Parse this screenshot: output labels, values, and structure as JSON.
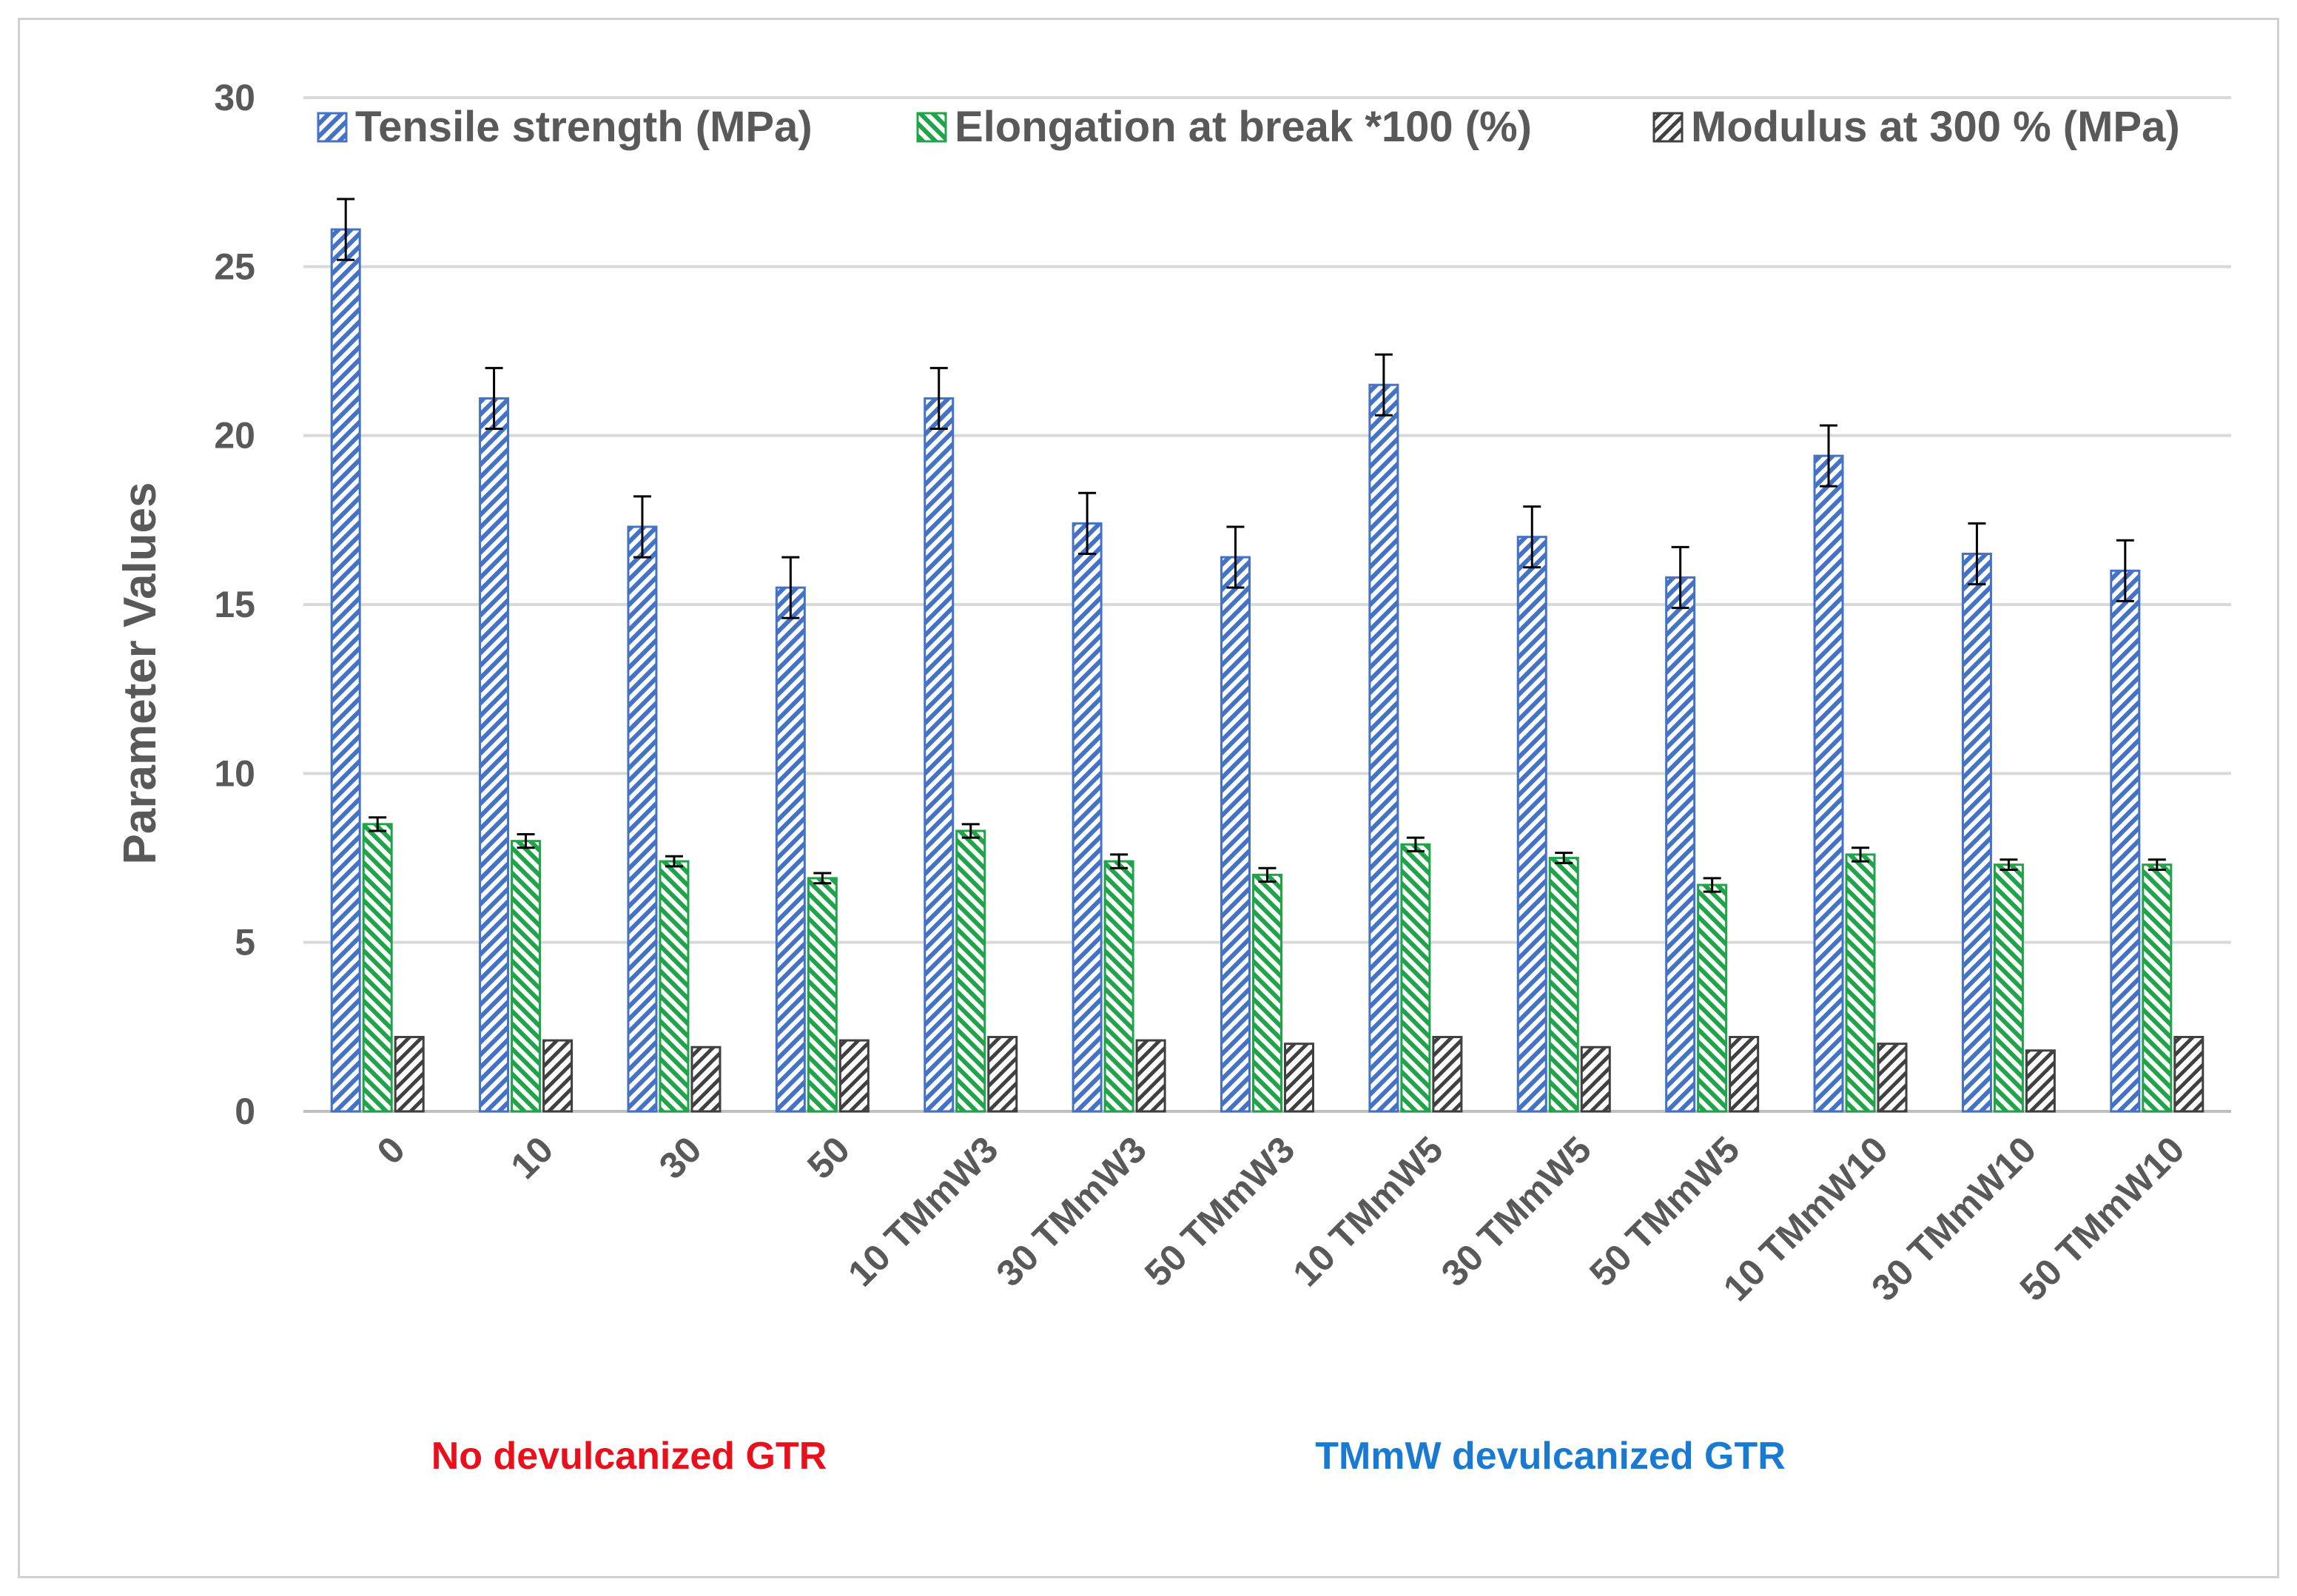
{
  "chart_data": {
    "type": "bar",
    "ylabel": "Parameter Values",
    "ylim": [
      0,
      30
    ],
    "yticks": [
      0,
      5,
      10,
      15,
      20,
      25,
      30
    ],
    "grid": true,
    "legend_position": "top",
    "categories": [
      "0",
      "10",
      "30",
      "50",
      "10 TMmW3",
      "30 TMmW3",
      "50 TMmW3",
      "10 TMmW5",
      "30 TMmW5",
      "50 TMmW5",
      "10 TMmW10",
      "30 TMmW10",
      "50 TMmW10"
    ],
    "series": [
      {
        "name": "Tensile strength (MPa)",
        "color": "#4472c4",
        "values": [
          26.1,
          21.1,
          17.3,
          15.5,
          21.1,
          17.4,
          16.4,
          21.5,
          17.0,
          15.8,
          19.4,
          16.5,
          16.0
        ],
        "errors": [
          0.9,
          0.9,
          0.9,
          0.9,
          0.9,
          0.9,
          0.9,
          0.9,
          0.9,
          0.9,
          0.9,
          0.9,
          0.9
        ]
      },
      {
        "name": "Elongation at break *100 (%)",
        "color": "#21a34a",
        "values": [
          8.5,
          8.0,
          7.4,
          6.9,
          8.3,
          7.4,
          7.0,
          7.9,
          7.5,
          6.7,
          7.6,
          7.3,
          7.3
        ],
        "errors": [
          0.2,
          0.2,
          0.15,
          0.15,
          0.2,
          0.2,
          0.2,
          0.2,
          0.15,
          0.2,
          0.2,
          0.15,
          0.15
        ]
      },
      {
        "name": "Modulus at 300 % (MPa)",
        "color": "#404040",
        "values": [
          2.2,
          2.1,
          1.9,
          2.1,
          2.2,
          2.1,
          2.0,
          2.2,
          1.9,
          2.2,
          2.0,
          1.8,
          2.2
        ],
        "errors": [
          0,
          0,
          0,
          0,
          0,
          0,
          0,
          0,
          0,
          0,
          0,
          0,
          0
        ]
      }
    ],
    "groups": [
      {
        "label": "No devulcanized GTR",
        "color": "#e8101a"
      },
      {
        "label": "TMmW devulcanized GTR",
        "color": "#1a7ad1"
      }
    ]
  }
}
